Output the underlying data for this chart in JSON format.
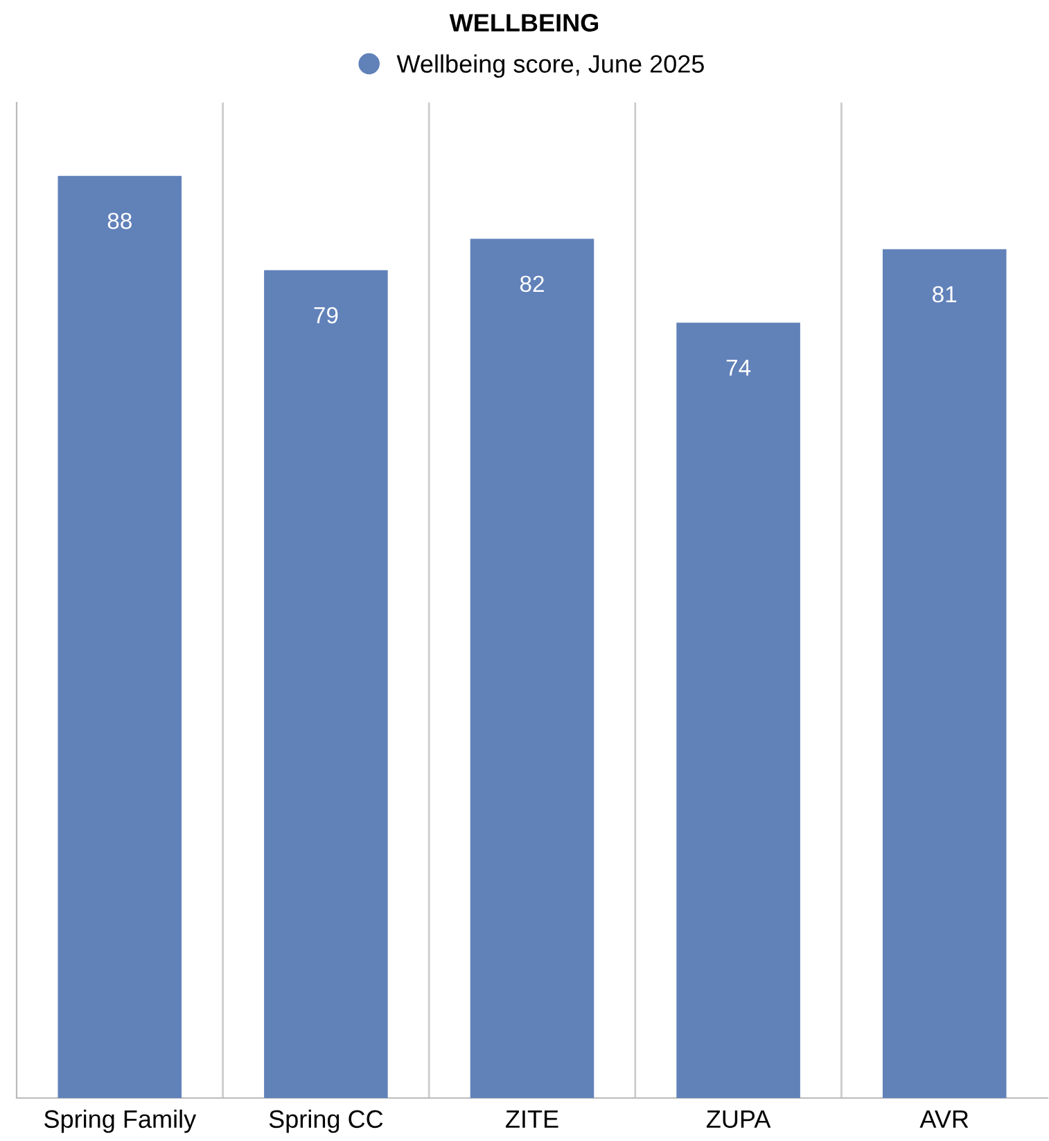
{
  "chart_data": {
    "type": "bar",
    "title": "WELLBEING",
    "categories": [
      "Spring Family",
      "Spring CC",
      "ZITE",
      "ZUPA",
      "AVR"
    ],
    "series": [
      {
        "name": "Wellbeing score, June 2025",
        "color": "#6181b9",
        "values": [
          88,
          79,
          82,
          74,
          81
        ]
      }
    ],
    "data_labels": true,
    "ylim": [
      0,
      95
    ],
    "grid": "x",
    "legend": "top",
    "tick_labels": "x"
  }
}
